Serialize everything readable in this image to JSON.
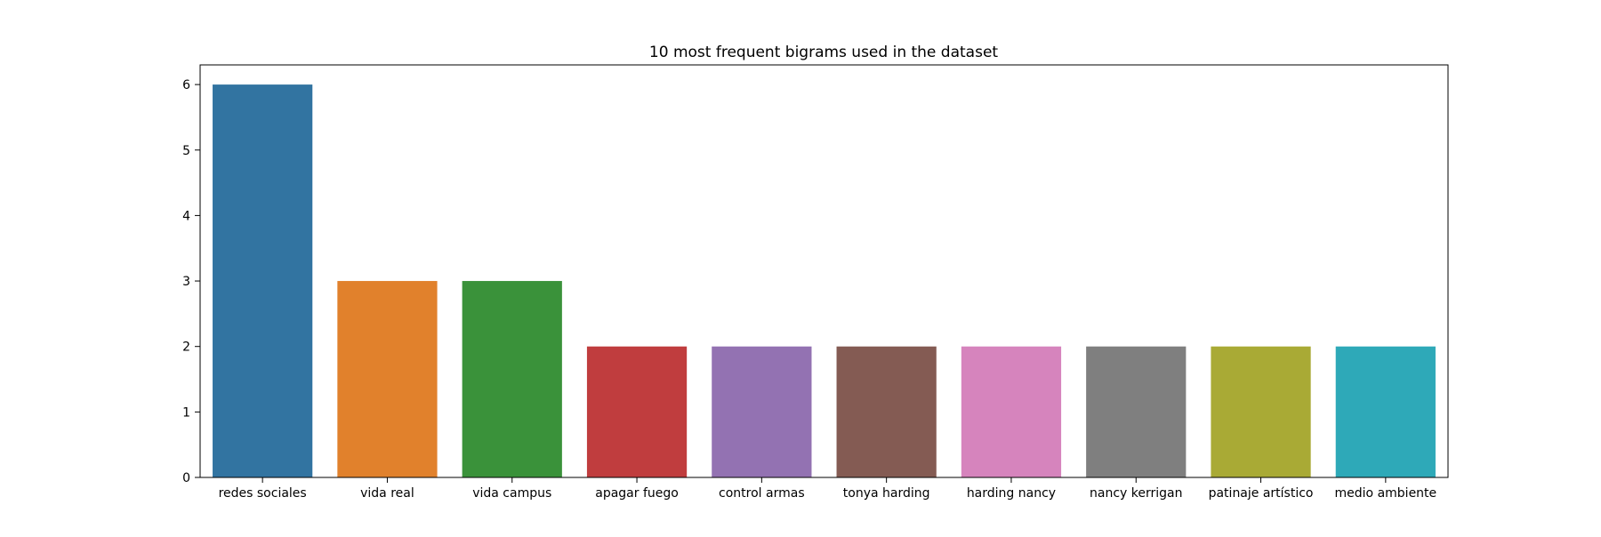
{
  "chart_data": {
    "type": "bar",
    "title": "10 most frequent bigrams used in the dataset",
    "xlabel": "",
    "ylabel": "",
    "categories": [
      "redes sociales",
      "vida real",
      "vida campus",
      "apagar fuego",
      "control armas",
      "tonya harding",
      "harding nancy",
      "nancy kerrigan",
      "patinaje artístico",
      "medio ambiente"
    ],
    "values": [
      6,
      3,
      3,
      2,
      2,
      2,
      2,
      2,
      2,
      2
    ],
    "colors": [
      "#3274a1",
      "#e1812c",
      "#3a923a",
      "#c03d3e",
      "#9372b2",
      "#845b53",
      "#d684bd",
      "#7f7f7f",
      "#a9aa35",
      "#2ea9b8"
    ],
    "ylim": [
      0,
      6.3
    ],
    "yticks": [
      0,
      1,
      2,
      3,
      4,
      5,
      6
    ],
    "grid": false,
    "legend": "none"
  }
}
